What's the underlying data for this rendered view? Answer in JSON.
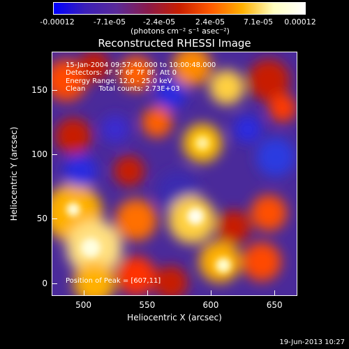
{
  "colorbar": {
    "tick_labels": [
      "-0.00012",
      "-7.1e-05",
      "-2.4e-05",
      "2.4e-05",
      "7.1e-05",
      "0.00012"
    ],
    "units": "(photons cm⁻² s⁻¹ asec⁻²)",
    "colors": [
      "#0000ff",
      "#3b1fb8",
      "#5a2a99",
      "#8a1a4a",
      "#c81e00",
      "#ff5a00",
      "#ffb000",
      "#ffffc0",
      "#ffffff"
    ]
  },
  "chart_data": {
    "type": "heatmap",
    "title": "Reconstructed RHESSI Image",
    "xlabel": "Heliocentric X (arcsec)",
    "ylabel": "Heliocentric Y (arcsec)",
    "xlim": [
      475,
      668
    ],
    "ylim": [
      -10,
      180
    ],
    "xticks": [
      "500",
      "550",
      "600",
      "650"
    ],
    "yticks": [
      "0",
      "50",
      "100",
      "150"
    ],
    "xtick_values": [
      500,
      550,
      600,
      650
    ],
    "ytick_values": [
      0,
      50,
      100,
      150
    ],
    "value_range": [
      -0.00012,
      0.00012
    ],
    "annotations": [
      "15-Jan-2004 09:57:40.000 to 10:00:48.000",
      "Detectors: 4F 5F 6F 7F 8F, Att 0",
      "Energy Range: 12.0 - 25.0 keV",
      "Clean      Total counts: 2.73E+03"
    ],
    "peak_label": "Position of Peak = [607,11]"
  },
  "footer": {
    "timestamp": "19-Jun-2013 10:27"
  }
}
